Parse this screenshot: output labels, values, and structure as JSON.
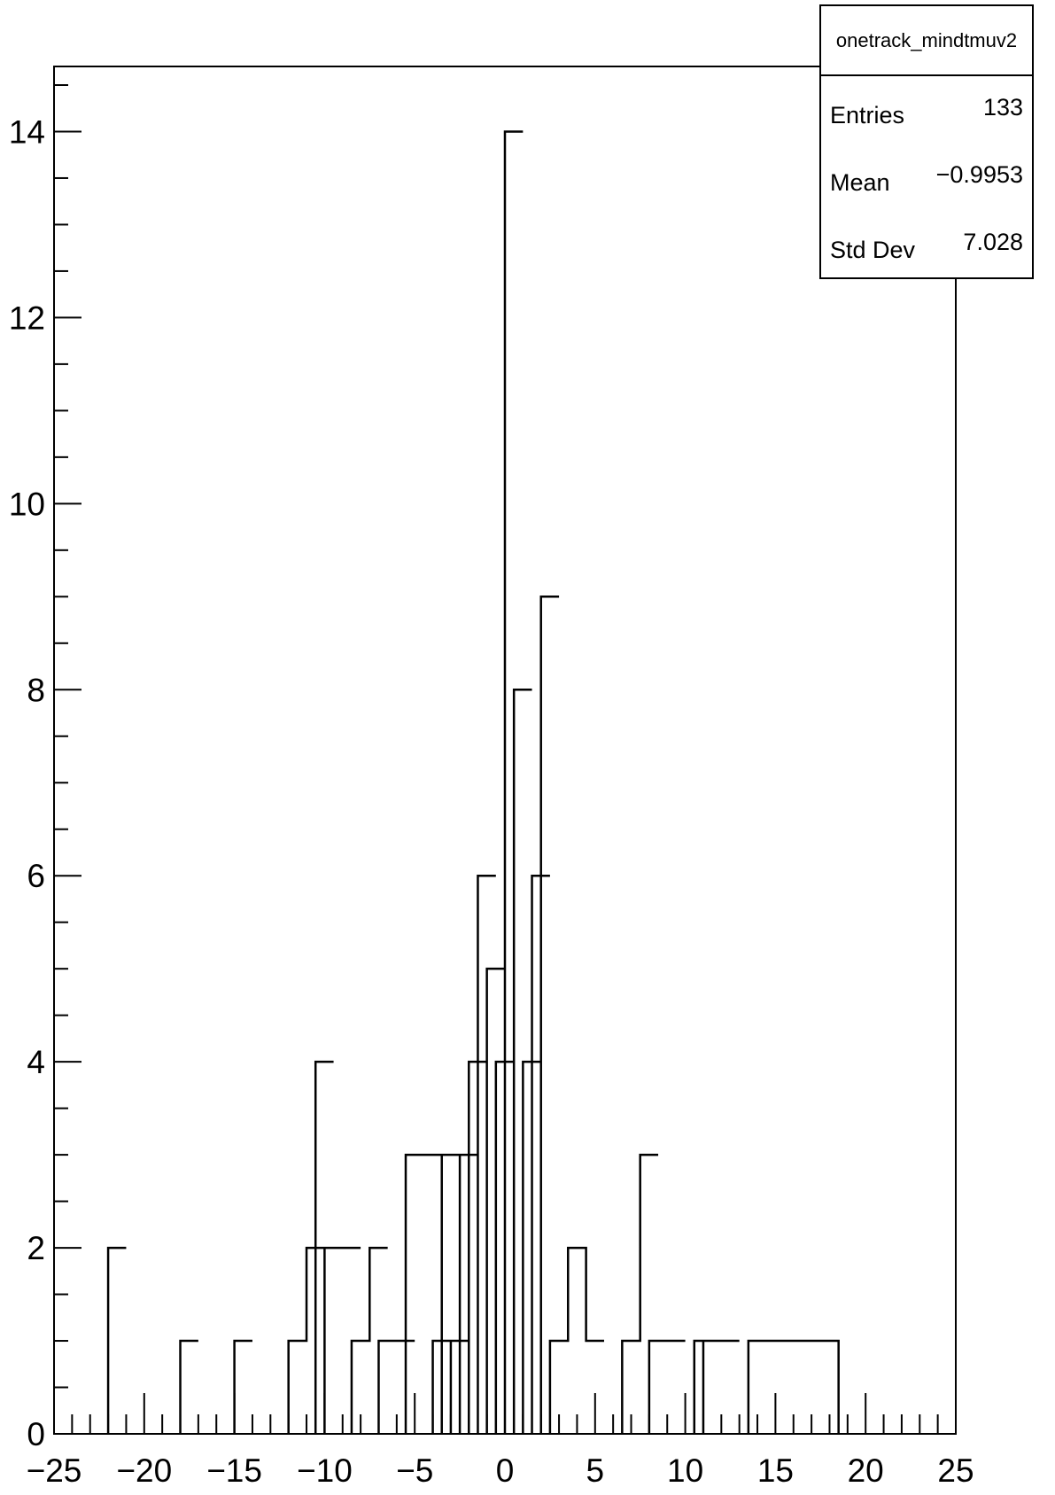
{
  "chart_data": {
    "type": "histogram",
    "title": "",
    "xlabel": "",
    "ylabel": "",
    "xlim": [
      -25,
      25
    ],
    "ylim": [
      0,
      14.7
    ],
    "bin_width": 1,
    "x_ticks": [
      -25,
      -20,
      -15,
      -10,
      -5,
      0,
      5,
      10,
      15,
      20,
      25
    ],
    "x_tick_labels": [
      "−25",
      "−20",
      "−15",
      "−10",
      "−5",
      "0",
      "5",
      "10",
      "15",
      "20",
      "25"
    ],
    "y_ticks": [
      0,
      2,
      4,
      6,
      8,
      10,
      12,
      14
    ],
    "y_tick_labels": [
      "0",
      "2",
      "4",
      "6",
      "8",
      "10",
      "12",
      "14"
    ],
    "bins": [
      {
        "x": -22,
        "count": 2
      },
      {
        "x": -18,
        "count": 1
      },
      {
        "x": -15,
        "count": 1
      },
      {
        "x": -12,
        "count": 1
      },
      {
        "x": -11,
        "count": 2
      },
      {
        "x": -10.5,
        "count": 4
      },
      {
        "x": -10,
        "count": 2
      },
      {
        "x": -9,
        "count": 2
      },
      {
        "x": -8.5,
        "count": 1
      },
      {
        "x": -7.5,
        "count": 2
      },
      {
        "x": -7,
        "count": 1
      },
      {
        "x": -6,
        "count": 1
      },
      {
        "x": -5.5,
        "count": 3
      },
      {
        "x": -4.5,
        "count": 3
      },
      {
        "x": -4,
        "count": 1
      },
      {
        "x": -3.5,
        "count": 3
      },
      {
        "x": -3,
        "count": 1
      },
      {
        "x": -2.5,
        "count": 3
      },
      {
        "x": -2,
        "count": 4
      },
      {
        "x": -1.5,
        "count": 6
      },
      {
        "x": -1,
        "count": 5
      },
      {
        "x": -0.5,
        "count": 4
      },
      {
        "x": 0,
        "count": 14
      },
      {
        "x": 0.5,
        "count": 8
      },
      {
        "x": 1,
        "count": 4
      },
      {
        "x": 1.5,
        "count": 6
      },
      {
        "x": 2,
        "count": 9
      },
      {
        "x": 2.5,
        "count": 1
      },
      {
        "x": 3.5,
        "count": 2
      },
      {
        "x": 4.5,
        "count": 1
      },
      {
        "x": 6.5,
        "count": 1
      },
      {
        "x": 7.5,
        "count": 3
      },
      {
        "x": 8,
        "count": 1
      },
      {
        "x": 9,
        "count": 1
      },
      {
        "x": 10.5,
        "count": 1
      },
      {
        "x": 11,
        "count": 1
      },
      {
        "x": 12,
        "count": 1
      },
      {
        "x": 13.5,
        "count": 1
      },
      {
        "x": 14.5,
        "count": 1
      },
      {
        "x": 15.5,
        "count": 1
      },
      {
        "x": 16.5,
        "count": 1
      },
      {
        "x": 17.5,
        "count": 1
      }
    ]
  },
  "stats": {
    "name": "onetrack_mindtmuv2",
    "entries_label": "Entries",
    "entries_value": "133",
    "mean_label": "Mean",
    "mean_value": "−0.9953",
    "std_label": "Std Dev",
    "std_value": "7.028"
  }
}
